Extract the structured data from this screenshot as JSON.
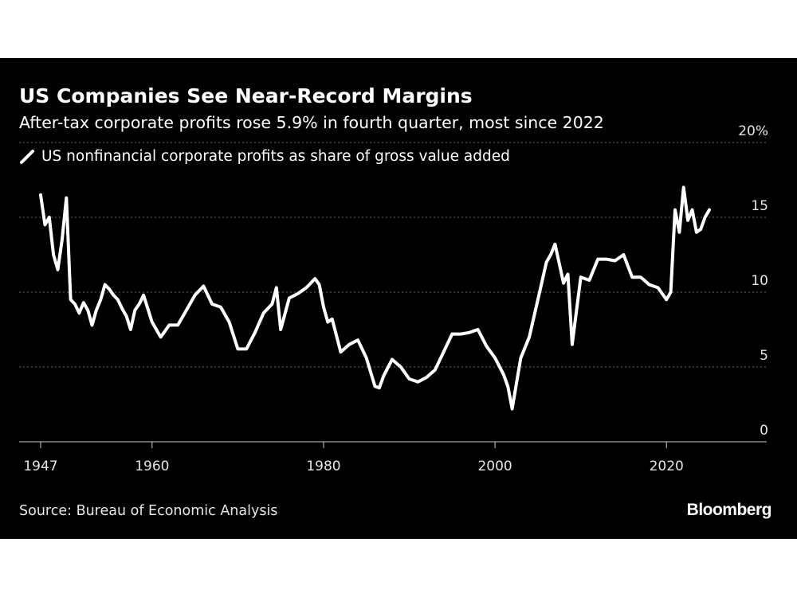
{
  "header": {
    "title": "US Companies See Near-Record Margins",
    "subtitle": "After-tax corporate profits rose 5.9% in fourth quarter, most since 2022"
  },
  "footer": {
    "source": "Source: Bureau of Economic Analysis",
    "brand": "Bloomberg"
  },
  "colors": {
    "background": "#000000",
    "line": "#ffffff",
    "grid": "#666666"
  },
  "chart_data": {
    "type": "line",
    "title": "US Companies See Near-Record Margins",
    "subtitle": "After-tax corporate profits rose 5.9% in fourth quarter, most since 2022",
    "xlabel": "",
    "ylabel": "",
    "xlim": [
      1947,
      2031
    ],
    "ylim": [
      0,
      20
    ],
    "x_ticks": [
      1947,
      1960,
      1980,
      2000,
      2020
    ],
    "x_tick_labels": [
      "1947",
      "1960",
      "1980",
      "2000",
      "2020"
    ],
    "y_ticks": [
      0,
      5,
      10,
      15,
      20
    ],
    "y_tick_labels": [
      "0",
      "5",
      "10",
      "15",
      "20%"
    ],
    "y_axis_position": "right",
    "grid": true,
    "legend_position": "top-left",
    "series": [
      {
        "name": "US nonfinancial corporate profits as share of gross value added",
        "color": "#ffffff",
        "x": [
          1947.0,
          1947.5,
          1948.0,
          1948.5,
          1949.0,
          1949.5,
          1950.0,
          1950.5,
          1951.0,
          1951.5,
          1952.0,
          1952.5,
          1953.0,
          1953.5,
          1954.0,
          1954.5,
          1955.0,
          1955.5,
          1956.0,
          1956.5,
          1957.0,
          1957.5,
          1958.0,
          1958.5,
          1959.0,
          1960.0,
          1961.0,
          1961.5,
          1962.0,
          1963.0,
          1964.0,
          1965.0,
          1966.0,
          1967.0,
          1968.0,
          1969.0,
          1970.0,
          1971.0,
          1972.0,
          1973.0,
          1974.0,
          1974.5,
          1975.0,
          1976.0,
          1977.0,
          1978.0,
          1979.0,
          1979.5,
          1980.0,
          1980.5,
          1981.0,
          1982.0,
          1983.0,
          1984.0,
          1985.0,
          1986.0,
          1986.5,
          1987.0,
          1988.0,
          1989.0,
          1990.0,
          1991.0,
          1992.0,
          1993.0,
          1994.0,
          1995.0,
          1996.0,
          1997.0,
          1998.0,
          1999.0,
          2000.0,
          2001.0,
          2001.5,
          2002.0,
          2003.0,
          2004.0,
          2005.0,
          2006.0,
          2006.5,
          2007.0,
          2008.0,
          2008.5,
          2009.0,
          2010.0,
          2011.0,
          2012.0,
          2013.0,
          2014.0,
          2015.0,
          2016.0,
          2017.0,
          2018.0,
          2019.0,
          2020.0,
          2020.5,
          2021.0,
          2021.5,
          2022.0,
          2022.5,
          2023.0,
          2023.5,
          2024.0,
          2024.5,
          2025.0
        ],
        "y": [
          16.5,
          14.5,
          15.0,
          12.5,
          11.5,
          13.5,
          16.3,
          9.5,
          9.2,
          8.6,
          9.3,
          8.8,
          7.8,
          8.8,
          9.5,
          10.5,
          10.2,
          9.8,
          9.5,
          8.9,
          8.4,
          7.5,
          8.8,
          9.2,
          9.8,
          8.0,
          7.0,
          7.4,
          7.8,
          7.8,
          8.8,
          9.8,
          10.4,
          9.2,
          9.0,
          8.0,
          6.2,
          6.2,
          7.3,
          8.6,
          9.2,
          10.3,
          7.5,
          9.6,
          9.9,
          10.3,
          10.9,
          10.5,
          9.0,
          8.0,
          8.2,
          6.0,
          6.5,
          6.8,
          5.6,
          3.7,
          3.6,
          4.4,
          5.5,
          5.0,
          4.2,
          4.0,
          4.3,
          4.8,
          6.0,
          7.2,
          7.2,
          7.3,
          7.5,
          6.4,
          5.6,
          4.5,
          3.7,
          2.2,
          5.6,
          7.0,
          9.5,
          12.0,
          12.5,
          13.2,
          10.6,
          11.2,
          6.5,
          11.0,
          10.8,
          12.2,
          12.2,
          12.1,
          12.5,
          11.0,
          11.0,
          10.5,
          10.3,
          9.5,
          10.0,
          15.5,
          14.0,
          17.0,
          14.8,
          15.5,
          14.0,
          14.2,
          15.0,
          15.5
        ]
      }
    ]
  }
}
